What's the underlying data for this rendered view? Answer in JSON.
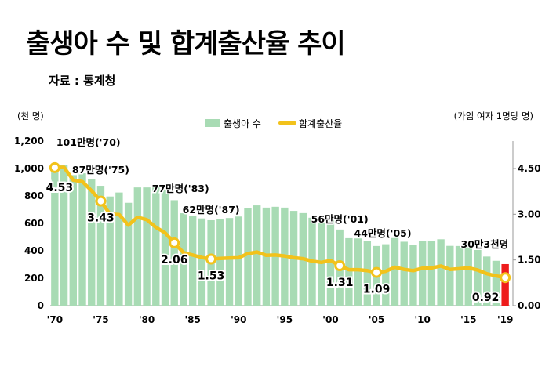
{
  "title": "출생아 수 및 합계출산율 추이",
  "source": "자료 : 통계청",
  "chart_data": {
    "type": "bar+line",
    "title": "출생아 수 및 합계출산율 추이",
    "left_axis_unit": "(천 명)",
    "right_axis_unit": "(가임 여자 1명당 명)",
    "left_ylim": [
      0,
      1200
    ],
    "left_ticks": [
      "0",
      "200",
      "400",
      "600",
      "800",
      "1,000",
      "1,200"
    ],
    "right_ylim": [
      0,
      5.4
    ],
    "right_ticks": [
      "0.00",
      "1.50",
      "3.00",
      "4.50"
    ],
    "x_tick_labels": [
      "'70",
      "'75",
      "'80",
      "'85",
      "'90",
      "'95",
      "'00",
      "'05",
      "'10",
      "'15",
      "'19"
    ],
    "legend": {
      "bars": "출생아 수",
      "line": "합계출산율",
      "position": "top-center"
    },
    "colors": {
      "bars": "#a8dbb4",
      "highlight_bar": "#ee1c1c",
      "line": "#f2c21b",
      "marker_fill": "#ffffff"
    },
    "years": [
      1970,
      1971,
      1972,
      1973,
      1974,
      1975,
      1976,
      1977,
      1978,
      1979,
      1980,
      1981,
      1982,
      1983,
      1984,
      1985,
      1986,
      1987,
      1988,
      1989,
      1990,
      1991,
      1992,
      1993,
      1994,
      1995,
      1996,
      1997,
      1998,
      1999,
      2000,
      2001,
      2002,
      2003,
      2004,
      2005,
      2006,
      2007,
      2008,
      2009,
      2010,
      2011,
      2012,
      2013,
      2014,
      2015,
      2016,
      2017,
      2018,
      2019
    ],
    "births_thousand": [
      1007,
      1024,
      952,
      965,
      922,
      874,
      796,
      825,
      750,
      862,
      862,
      867,
      848,
      769,
      674,
      655,
      636,
      623,
      633,
      639,
      650,
      709,
      731,
      715,
      721,
      715,
      691,
      675,
      641,
      614,
      635,
      555,
      492,
      490,
      473,
      435,
      448,
      493,
      466,
      445,
      470,
      471,
      484,
      436,
      435,
      438,
      406,
      358,
      327,
      303
    ],
    "tfr": [
      4.53,
      4.54,
      4.12,
      4.07,
      3.77,
      3.43,
      3.0,
      2.99,
      2.64,
      2.9,
      2.82,
      2.57,
      2.39,
      2.06,
      1.74,
      1.66,
      1.58,
      1.53,
      1.55,
      1.56,
      1.57,
      1.71,
      1.76,
      1.65,
      1.66,
      1.63,
      1.57,
      1.54,
      1.46,
      1.42,
      1.48,
      1.31,
      1.18,
      1.18,
      1.15,
      1.09,
      1.13,
      1.26,
      1.19,
      1.15,
      1.23,
      1.24,
      1.3,
      1.19,
      1.21,
      1.24,
      1.17,
      1.05,
      0.98,
      0.92
    ],
    "highlight_year": 2019,
    "bar_annotations": [
      {
        "year": 1970,
        "text": "101만명('70)"
      },
      {
        "year": 1975,
        "text": "87만명('75)"
      },
      {
        "year": 1983,
        "text": "77만명('83)"
      },
      {
        "year": 1987,
        "text": "62만명('87)"
      },
      {
        "year": 2001,
        "text": "56만명('01)"
      },
      {
        "year": 2005,
        "text": "44만명('05)"
      },
      {
        "year": 2019,
        "text": "30만3천명"
      }
    ],
    "rate_markers": [
      {
        "year": 1970,
        "text": "4.53"
      },
      {
        "year": 1975,
        "text": "3.43"
      },
      {
        "year": 1983,
        "text": "2.06"
      },
      {
        "year": 1987,
        "text": "1.53"
      },
      {
        "year": 2001,
        "text": "1.31"
      },
      {
        "year": 2005,
        "text": "1.09"
      },
      {
        "year": 2019,
        "text": "0.92"
      }
    ]
  }
}
